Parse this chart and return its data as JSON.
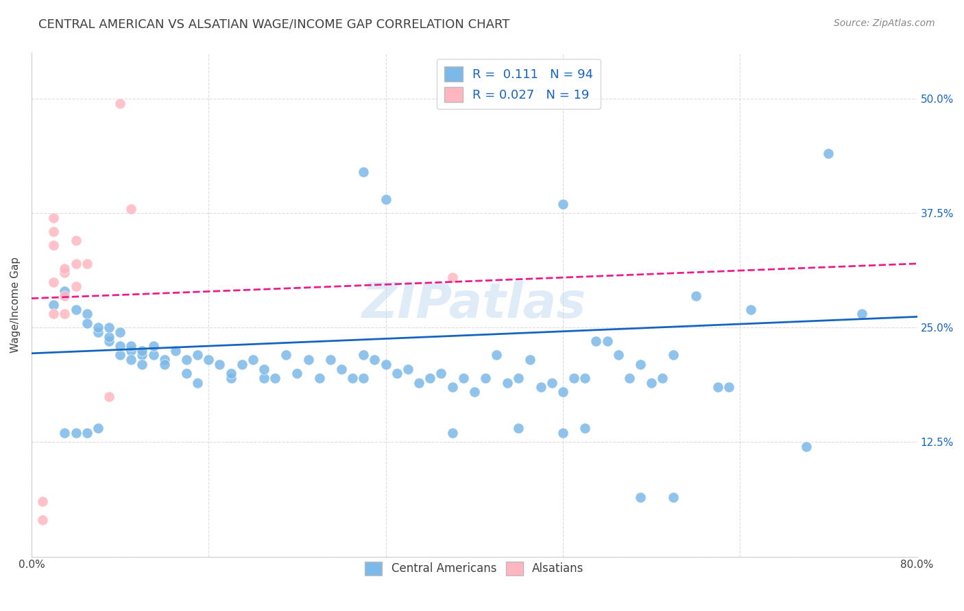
{
  "title": "CENTRAL AMERICAN VS ALSATIAN WAGE/INCOME GAP CORRELATION CHART",
  "source": "Source: ZipAtlas.com",
  "xlabel": "",
  "ylabel": "Wage/Income Gap",
  "xlim": [
    0.0,
    0.8
  ],
  "ylim": [
    0.0,
    0.55
  ],
  "yticks": [
    0.0,
    0.125,
    0.25,
    0.375,
    0.5
  ],
  "ytick_labels": [
    "",
    "12.5%",
    "25.0%",
    "37.5%",
    "50.0%"
  ],
  "xticks": [
    0.0,
    0.16,
    0.32,
    0.48,
    0.64,
    0.8
  ],
  "xtick_labels": [
    "0.0%",
    "",
    "",
    "",
    "",
    "80.0%"
  ],
  "blue_color": "#7cb9e8",
  "pink_color": "#ffb6c1",
  "blue_line_color": "#1565c0",
  "pink_line_color": "#e91e8c",
  "watermark": "ZIPatlas",
  "legend_R_blue": "0.111",
  "legend_N_blue": "94",
  "legend_R_pink": "0.027",
  "legend_N_pink": "19",
  "blue_points_x": [
    0.02,
    0.03,
    0.04,
    0.05,
    0.05,
    0.06,
    0.06,
    0.07,
    0.07,
    0.07,
    0.08,
    0.08,
    0.08,
    0.09,
    0.09,
    0.09,
    0.1,
    0.1,
    0.1,
    0.11,
    0.11,
    0.12,
    0.12,
    0.13,
    0.14,
    0.14,
    0.15,
    0.15,
    0.16,
    0.17,
    0.18,
    0.18,
    0.19,
    0.2,
    0.21,
    0.21,
    0.22,
    0.23,
    0.24,
    0.25,
    0.26,
    0.27,
    0.28,
    0.29,
    0.3,
    0.3,
    0.31,
    0.32,
    0.33,
    0.34,
    0.35,
    0.36,
    0.37,
    0.38,
    0.39,
    0.4,
    0.41,
    0.42,
    0.43,
    0.44,
    0.45,
    0.46,
    0.47,
    0.48,
    0.49,
    0.5,
    0.51,
    0.52,
    0.53,
    0.54,
    0.55,
    0.56,
    0.57,
    0.58,
    0.6,
    0.62,
    0.63,
    0.65,
    0.7,
    0.75,
    0.03,
    0.04,
    0.05,
    0.06,
    0.38,
    0.44,
    0.48,
    0.5,
    0.55,
    0.58,
    0.3,
    0.32,
    0.48,
    0.72
  ],
  "blue_points_y": [
    0.275,
    0.29,
    0.27,
    0.265,
    0.255,
    0.245,
    0.25,
    0.235,
    0.24,
    0.25,
    0.22,
    0.23,
    0.245,
    0.225,
    0.215,
    0.23,
    0.22,
    0.21,
    0.225,
    0.22,
    0.23,
    0.215,
    0.21,
    0.225,
    0.2,
    0.215,
    0.22,
    0.19,
    0.215,
    0.21,
    0.195,
    0.2,
    0.21,
    0.215,
    0.195,
    0.205,
    0.195,
    0.22,
    0.2,
    0.215,
    0.195,
    0.215,
    0.205,
    0.195,
    0.22,
    0.195,
    0.215,
    0.21,
    0.2,
    0.205,
    0.19,
    0.195,
    0.2,
    0.185,
    0.195,
    0.18,
    0.195,
    0.22,
    0.19,
    0.195,
    0.215,
    0.185,
    0.19,
    0.18,
    0.195,
    0.195,
    0.235,
    0.235,
    0.22,
    0.195,
    0.21,
    0.19,
    0.195,
    0.22,
    0.285,
    0.185,
    0.185,
    0.27,
    0.12,
    0.265,
    0.135,
    0.135,
    0.135,
    0.14,
    0.135,
    0.14,
    0.135,
    0.14,
    0.065,
    0.065,
    0.42,
    0.39,
    0.385,
    0.44
  ],
  "pink_points_x": [
    0.01,
    0.01,
    0.02,
    0.02,
    0.02,
    0.02,
    0.02,
    0.03,
    0.03,
    0.03,
    0.03,
    0.04,
    0.04,
    0.04,
    0.05,
    0.07,
    0.38,
    0.08,
    0.09
  ],
  "pink_points_y": [
    0.04,
    0.06,
    0.3,
    0.34,
    0.355,
    0.37,
    0.265,
    0.265,
    0.285,
    0.31,
    0.315,
    0.295,
    0.32,
    0.345,
    0.32,
    0.175,
    0.305,
    0.495,
    0.38
  ],
  "blue_trend_x": [
    0.0,
    0.8
  ],
  "blue_trend_y": [
    0.222,
    0.262
  ],
  "pink_trend_x": [
    0.0,
    0.8
  ],
  "pink_trend_y": [
    0.282,
    0.32
  ],
  "background_color": "#ffffff",
  "grid_color": "#cccccc",
  "title_color": "#404040",
  "axis_label_color": "#404040",
  "tick_label_color_right": "#1565c0",
  "legend_text_color": "#1565c0"
}
